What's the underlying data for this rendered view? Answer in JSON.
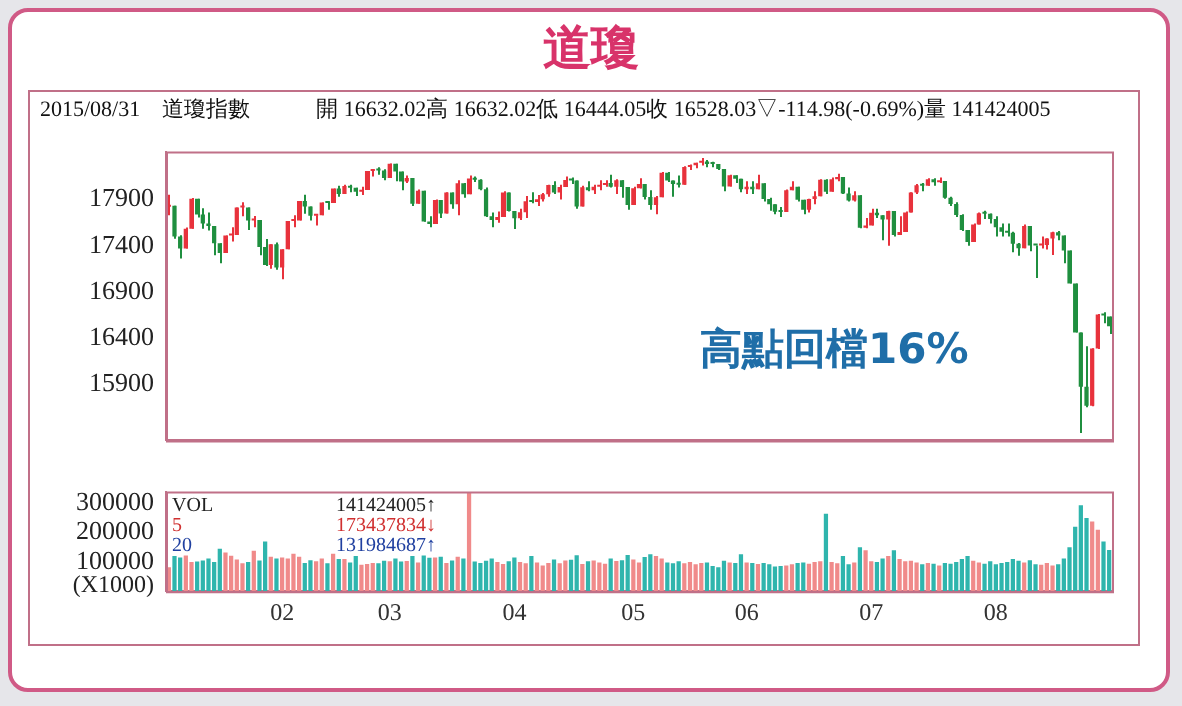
{
  "chart_data": [
    {
      "type": "candlestick",
      "title": "道瓊",
      "subtitle": "2015/08/31　道瓊指數　　　開 16632.02高 16632.02低 16444.05收 16528.03▽-114.98(-0.69%)量 141424005",
      "categories": [
        null,
        null,
        null,
        null,
        null,
        null,
        null,
        null,
        null,
        null,
        null,
        null,
        null,
        null,
        null,
        null,
        null,
        null,
        null,
        null,
        "02",
        null,
        null,
        null,
        null,
        null,
        null,
        null,
        null,
        null,
        null,
        null,
        null,
        null,
        null,
        null,
        null,
        null,
        null,
        "03",
        null,
        null,
        null,
        null,
        null,
        null,
        null,
        null,
        null,
        null,
        null,
        null,
        null,
        null,
        null,
        null,
        null,
        null,
        null,
        null,
        null,
        "04",
        null,
        null,
        null,
        null,
        null,
        null,
        null,
        null,
        null,
        null,
        null,
        null,
        null,
        null,
        null,
        null,
        null,
        null,
        null,
        null,
        "05",
        null,
        null,
        null,
        null,
        null,
        null,
        null,
        null,
        null,
        null,
        null,
        null,
        null,
        null,
        null,
        null,
        null,
        null,
        null,
        "06",
        null,
        null,
        null,
        null,
        null,
        null,
        null,
        null,
        null,
        null,
        null,
        null,
        null,
        null,
        null,
        null,
        null,
        null,
        null,
        null,
        null,
        "07",
        null,
        null,
        null,
        null,
        null,
        null,
        null,
        null,
        null,
        null,
        null,
        null,
        null,
        null,
        null,
        null,
        null,
        null,
        null,
        null,
        null,
        "08",
        null,
        null,
        null,
        null,
        null,
        null,
        null,
        null,
        null,
        null,
        null,
        null,
        null,
        null,
        null,
        null,
        null,
        null,
        null,
        null
      ],
      "ohlc": [
        [
          17823,
          17951,
          17731,
          17833
        ],
        [
          17833,
          17833,
          17476,
          17501
        ],
        [
          17501,
          17514,
          17262,
          17371
        ],
        [
          17371,
          17597,
          17371,
          17584
        ],
        [
          17584,
          17916,
          17584,
          17908
        ],
        [
          17908,
          17908,
          17705,
          17737
        ],
        [
          17737,
          17806,
          17585,
          17640
        ],
        [
          17640,
          17760,
          17566,
          17613
        ],
        [
          17613,
          17613,
          17298,
          17427
        ],
        [
          17427,
          17428,
          17210,
          17320
        ],
        [
          17320,
          17511,
          17320,
          17511
        ],
        [
          17511,
          17600,
          17446,
          17516
        ],
        [
          17516,
          17814,
          17516,
          17814
        ],
        [
          17813,
          17870,
          17720,
          17813
        ],
        [
          17813,
          17813,
          17571,
          17673
        ],
        [
          17673,
          17721,
          17600,
          17679
        ],
        [
          17679,
          17679,
          17297,
          17387
        ],
        [
          17387,
          17474,
          17180,
          17191
        ],
        [
          17191,
          17416,
          17150,
          17416
        ],
        [
          17416,
          17436,
          17140,
          17165
        ],
        [
          17165,
          17362,
          17037,
          17362
        ],
        [
          17362,
          17667,
          17362,
          17667
        ],
        [
          17667,
          17730,
          17600,
          17673
        ],
        [
          17673,
          17885,
          17673,
          17885
        ],
        [
          17885,
          17951,
          17746,
          17825
        ],
        [
          17825,
          17825,
          17673,
          17725
        ],
        [
          17725,
          17729,
          17620,
          17729
        ],
        [
          17729,
          17868,
          17729,
          17868
        ],
        [
          17868,
          17881,
          17790,
          17862
        ],
        [
          17862,
          18019,
          17862,
          18019
        ],
        [
          18019,
          18050,
          17930,
          17960
        ],
        [
          17960,
          18060,
          17960,
          18047
        ],
        [
          18047,
          18060,
          17980,
          18029
        ],
        [
          18029,
          18029,
          17940,
          17986
        ],
        [
          17986,
          18040,
          17950,
          18004
        ],
        [
          18004,
          18210,
          18004,
          18210
        ],
        [
          18210,
          18230,
          18150,
          18224
        ],
        [
          18224,
          18250,
          18170,
          18215
        ],
        [
          18215,
          18230,
          18110,
          18133
        ],
        [
          18133,
          18290,
          18133,
          18288
        ],
        [
          18288,
          18288,
          18100,
          18203
        ],
        [
          18203,
          18203,
          18000,
          18097
        ],
        [
          18097,
          18160,
          18080,
          18135
        ],
        [
          18135,
          18135,
          17830,
          17856
        ],
        [
          17856,
          18010,
          17856,
          17995
        ],
        [
          17995,
          17995,
          17660,
          17662
        ],
        [
          17662,
          17720,
          17600,
          17635
        ],
        [
          17635,
          17900,
          17635,
          17895
        ],
        [
          17895,
          17895,
          17700,
          17749
        ],
        [
          17749,
          17980,
          17749,
          17977
        ],
        [
          17977,
          17977,
          17800,
          17849
        ],
        [
          17849,
          18110,
          17730,
          18076
        ],
        [
          18076,
          18080,
          17920,
          17959
        ],
        [
          17959,
          18160,
          17959,
          18128
        ],
        [
          18128,
          18150,
          18090,
          18116
        ],
        [
          18116,
          18120,
          18000,
          18011
        ],
        [
          18011,
          18030,
          17710,
          17718
        ],
        [
          17718,
          17760,
          17600,
          17678
        ],
        [
          17678,
          17770,
          17650,
          17712
        ],
        [
          17712,
          17990,
          17712,
          17976
        ],
        [
          17976,
          17976,
          17770,
          17776
        ],
        [
          17776,
          17776,
          17580,
          17698
        ],
        [
          17698,
          17800,
          17680,
          17763
        ],
        [
          17763,
          17940,
          17700,
          17881
        ],
        [
          17881,
          17980,
          17860,
          17875
        ],
        [
          17875,
          17950,
          17830,
          17903
        ],
        [
          17903,
          17970,
          17880,
          17958
        ],
        [
          17958,
          18060,
          17930,
          18057
        ],
        [
          18057,
          18100,
          17960,
          17977
        ],
        [
          17977,
          18060,
          17900,
          18036
        ],
        [
          18036,
          18150,
          18036,
          18113
        ],
        [
          18113,
          18140,
          18070,
          18106
        ],
        [
          18106,
          18106,
          17800,
          17826
        ],
        [
          17826,
          18050,
          17826,
          18034
        ],
        [
          18034,
          18100,
          17990,
          18000
        ],
        [
          18000,
          18060,
          17960,
          18039
        ],
        [
          18039,
          18110,
          18000,
          18059
        ],
        [
          18059,
          18110,
          18040,
          18080
        ],
        [
          18080,
          18170,
          18030,
          18038
        ],
        [
          18038,
          18120,
          17960,
          18110
        ],
        [
          18110,
          18110,
          17920,
          18036
        ],
        [
          18036,
          18036,
          17790,
          17841
        ],
        [
          17841,
          18040,
          17841,
          18024
        ],
        [
          18024,
          18130,
          18020,
          18070
        ],
        [
          18070,
          18070,
          17900,
          17929
        ],
        [
          17929,
          18000,
          17790,
          17842
        ],
        [
          17842,
          17940,
          17740,
          17925
        ],
        [
          17925,
          18200,
          17925,
          18191
        ],
        [
          18191,
          18200,
          18090,
          18106
        ],
        [
          18106,
          18106,
          17930,
          18068
        ],
        [
          18068,
          18160,
          18030,
          18060
        ],
        [
          18060,
          18260,
          18060,
          18252
        ],
        [
          18252,
          18280,
          18220,
          18273
        ],
        [
          18273,
          18300,
          18240,
          18299
        ],
        [
          18299,
          18350,
          18270,
          18312
        ],
        [
          18312,
          18330,
          18250,
          18286
        ],
        [
          18286,
          18310,
          18250,
          18285
        ],
        [
          18285,
          18285,
          18220,
          18232
        ],
        [
          18232,
          18232,
          17990,
          18042
        ],
        [
          18042,
          18170,
          18042,
          18163
        ],
        [
          18163,
          18163,
          18080,
          18126
        ],
        [
          18126,
          18126,
          17980,
          18011
        ],
        [
          18011,
          18100,
          17960,
          18040
        ],
        [
          18040,
          18100,
          17960,
          18011
        ],
        [
          18011,
          18170,
          18011,
          18077
        ],
        [
          18077,
          18077,
          17880,
          17906
        ],
        [
          17906,
          17920,
          17780,
          17849
        ],
        [
          17849,
          17849,
          17740,
          17767
        ],
        [
          17767,
          17820,
          17710,
          17765
        ],
        [
          17765,
          18010,
          17765,
          18001
        ],
        [
          18001,
          18100,
          18001,
          18040
        ],
        [
          18040,
          18040,
          17880,
          17899
        ],
        [
          17899,
          17899,
          17740,
          17791
        ],
        [
          17791,
          17910,
          17760,
          17905
        ],
        [
          17905,
          17990,
          17850,
          17935
        ],
        [
          17935,
          18120,
          17935,
          18116
        ],
        [
          18116,
          18120,
          17960,
          17985
        ],
        [
          17985,
          18140,
          17985,
          18120
        ],
        [
          18120,
          18180,
          18100,
          18145
        ],
        [
          18145,
          18145,
          17960,
          17967
        ],
        [
          17967,
          18030,
          17880,
          17891
        ],
        [
          17891,
          17990,
          17880,
          17947
        ],
        [
          17947,
          17947,
          17590,
          17596
        ],
        [
          17596,
          17700,
          17590,
          17620
        ],
        [
          17620,
          17800,
          17620,
          17758
        ],
        [
          17758,
          17800,
          17700,
          17731
        ],
        [
          17731,
          17731,
          17460,
          17684
        ],
        [
          17684,
          17780,
          17400,
          17776
        ],
        [
          17776,
          17776,
          17500,
          17515
        ],
        [
          17515,
          17720,
          17515,
          17548
        ],
        [
          17548,
          17770,
          17548,
          17760
        ],
        [
          17760,
          17980,
          17760,
          17978
        ],
        [
          17978,
          18070,
          17960,
          18054
        ],
        [
          18054,
          18080,
          17990,
          18051
        ],
        [
          18051,
          18130,
          18051,
          18121
        ],
        [
          18121,
          18130,
          18050,
          18087
        ],
        [
          18087,
          18140,
          18080,
          18101
        ],
        [
          18101,
          18101,
          17910,
          17919
        ],
        [
          17919,
          17930,
          17830,
          17851
        ],
        [
          17851,
          17870,
          17710,
          17732
        ],
        [
          17732,
          17740,
          17560,
          17569
        ],
        [
          17569,
          17570,
          17400,
          17441
        ],
        [
          17441,
          17640,
          17441,
          17631
        ],
        [
          17631,
          17760,
          17630,
          17751
        ],
        [
          17751,
          17780,
          17690,
          17746
        ],
        [
          17746,
          17750,
          17640,
          17690
        ],
        [
          17690,
          17720,
          17500,
          17599
        ],
        [
          17599,
          17640,
          17500,
          17550
        ],
        [
          17550,
          17640,
          17500,
          17541
        ],
        [
          17541,
          17550,
          17330,
          17420
        ],
        [
          17420,
          17430,
          17290,
          17373
        ],
        [
          17373,
          17630,
          17373,
          17615
        ],
        [
          17615,
          17615,
          17340,
          17403
        ],
        [
          17403,
          17403,
          17050,
          17402
        ],
        [
          17402,
          17500,
          17370,
          17409
        ],
        [
          17409,
          17480,
          17360,
          17478
        ],
        [
          17478,
          17550,
          17300,
          17546
        ],
        [
          17546,
          17560,
          17460,
          17512
        ],
        [
          17512,
          17512,
          17210,
          17349
        ],
        [
          17349,
          17349,
          16990,
          16991
        ],
        [
          16991,
          16991,
          16460,
          16460
        ],
        [
          16460,
          16460,
          15370,
          15871
        ],
        [
          15872,
          16310,
          15650,
          15666
        ],
        [
          15666,
          16290,
          15660,
          16285
        ],
        [
          16285,
          16660,
          16280,
          16655
        ],
        [
          16655,
          16680,
          16560,
          16643
        ],
        [
          16632.02,
          16632.02,
          16444.05,
          16528.03
        ]
      ],
      "colors": [
        "#e8323c",
        "#1f8f3f",
        "#1f8f3f",
        "#e8323c",
        "#e8323c",
        "#1f8f3f",
        "#1f8f3f",
        "#1f8f3f",
        "#1f8f3f",
        "#1f8f3f",
        "#e8323c",
        "#e8323c",
        "#e8323c",
        "#e8323c",
        "#1f8f3f",
        "#e8323c",
        "#1f8f3f",
        "#1f8f3f",
        "#e8323c",
        "#1f8f3f",
        "#e8323c",
        "#e8323c",
        "#e8323c",
        "#e8323c",
        "#1f8f3f",
        "#1f8f3f",
        "#e8323c",
        "#e8323c",
        "#1f8f3f",
        "#e8323c",
        "#1f8f3f",
        "#e8323c",
        "#1f8f3f",
        "#1f8f3f",
        "#e8323c",
        "#e8323c",
        "#e8323c",
        "#1f8f3f",
        "#1f8f3f",
        "#e8323c",
        "#1f8f3f",
        "#1f8f3f",
        "#e8323c",
        "#1f8f3f",
        "#e8323c",
        "#1f8f3f",
        "#1f8f3f",
        "#e8323c",
        "#1f8f3f",
        "#e8323c",
        "#1f8f3f",
        "#e8323c",
        "#1f8f3f",
        "#e8323c",
        "#1f8f3f",
        "#1f8f3f",
        "#1f8f3f",
        "#1f8f3f",
        "#e8323c",
        "#e8323c",
        "#1f8f3f",
        "#1f8f3f",
        "#e8323c",
        "#e8323c",
        "#1f8f3f",
        "#e8323c",
        "#e8323c",
        "#e8323c",
        "#1f8f3f",
        "#e8323c",
        "#e8323c",
        "#1f8f3f",
        "#1f8f3f",
        "#e8323c",
        "#1f8f3f",
        "#e8323c",
        "#e8323c",
        "#e8323c",
        "#1f8f3f",
        "#e8323c",
        "#1f8f3f",
        "#1f8f3f",
        "#e8323c",
        "#e8323c",
        "#1f8f3f",
        "#1f8f3f",
        "#e8323c",
        "#e8323c",
        "#1f8f3f",
        "#1f8f3f",
        "#1f8f3f",
        "#e8323c",
        "#e8323c",
        "#e8323c",
        "#e8323c",
        "#1f8f3f",
        "#1f8f3f",
        "#1f8f3f",
        "#1f8f3f",
        "#e8323c",
        "#1f8f3f",
        "#1f8f3f",
        "#e8323c",
        "#1f8f3f",
        "#e8323c",
        "#1f8f3f",
        "#1f8f3f",
        "#1f8f3f",
        "#1f8f3f",
        "#e8323c",
        "#e8323c",
        "#1f8f3f",
        "#1f8f3f",
        "#e8323c",
        "#e8323c",
        "#e8323c",
        "#1f8f3f",
        "#e8323c",
        "#e8323c",
        "#1f8f3f",
        "#1f8f3f",
        "#e8323c",
        "#1f8f3f",
        "#e8323c",
        "#e8323c",
        "#1f8f3f",
        "#1f8f3f",
        "#e8323c",
        "#1f8f3f",
        "#e8323c",
        "#e8323c",
        "#e8323c",
        "#e8323c",
        "#1f8f3f",
        "#e8323c",
        "#1f8f3f",
        "#e8323c",
        "#1f8f3f",
        "#1f8f3f",
        "#1f8f3f",
        "#1f8f3f",
        "#1f8f3f",
        "#e8323c",
        "#e8323c",
        "#1f8f3f",
        "#1f8f3f",
        "#1f8f3f",
        "#1f8f3f",
        "#1f8f3f",
        "#1f8f3f",
        "#1f8f3f",
        "#e8323c",
        "#1f8f3f",
        "#1f8f3f",
        "#e8323c",
        "#e8323c",
        "#e8323c",
        "#1f8f3f",
        "#1f8f3f",
        "#1f8f3f",
        "#1f8f3f",
        "#1f8f3f",
        "#1f8f3f",
        "#e8323c",
        "#e8323c",
        "#1f8f3f",
        "#1f8f3f"
      ],
      "ylim": [
        15290,
        18420
      ],
      "yticks": [
        15900,
        16400,
        16900,
        17400,
        17900
      ],
      "tick_labels": "y",
      "annotations": [
        "高點回檔16%"
      ]
    },
    {
      "type": "bar",
      "ylabel": "(X1000)",
      "categories": [
        null,
        null,
        null,
        null,
        null,
        null,
        null,
        null,
        null,
        null,
        null,
        null,
        null,
        null,
        null,
        null,
        null,
        null,
        null,
        null,
        "02",
        null,
        null,
        null,
        null,
        null,
        null,
        null,
        null,
        null,
        null,
        null,
        null,
        null,
        null,
        null,
        null,
        null,
        null,
        "03",
        null,
        null,
        null,
        null,
        null,
        null,
        null,
        null,
        null,
        null,
        null,
        null,
        null,
        null,
        null,
        null,
        null,
        null,
        null,
        null,
        null,
        "04",
        null,
        null,
        null,
        null,
        null,
        null,
        null,
        null,
        null,
        null,
        null,
        null,
        null,
        null,
        null,
        null,
        null,
        null,
        null,
        null,
        "05",
        null,
        null,
        null,
        null,
        null,
        null,
        null,
        null,
        null,
        null,
        null,
        null,
        null,
        null,
        null,
        null,
        null,
        null,
        null,
        "06",
        null,
        null,
        null,
        null,
        null,
        null,
        null,
        null,
        null,
        null,
        null,
        null,
        null,
        null,
        null,
        null,
        null,
        null,
        null,
        null,
        null,
        "07",
        null,
        null,
        null,
        null,
        null,
        null,
        null,
        null,
        null,
        null,
        null,
        null,
        null,
        null,
        null,
        null,
        null,
        null,
        null,
        null,
        null,
        "08",
        null,
        null,
        null,
        null,
        null,
        null,
        null,
        null,
        null,
        null,
        null,
        null,
        null,
        null,
        null,
        null,
        null,
        null,
        null,
        null
      ],
      "values": [
        82000,
        120000,
        115000,
        122000,
        100000,
        101000,
        105000,
        112000,
        100000,
        145000,
        132000,
        121000,
        108000,
        95000,
        100000,
        138000,
        105000,
        170000,
        118000,
        112000,
        115000,
        112000,
        128000,
        118000,
        96000,
        106000,
        102000,
        112000,
        95000,
        128000,
        110000,
        110000,
        98000,
        120000,
        90000,
        93000,
        96000,
        95000,
        104000,
        102000,
        112000,
        101000,
        103000,
        120000,
        98000,
        122000,
        114000,
        115000,
        118000,
        96000,
        105000,
        118000,
        112000,
        335000,
        101000,
        96000,
        104000,
        112000,
        100000,
        93000,
        102000,
        115000,
        100000,
        95000,
        120000,
        98000,
        88000,
        96000,
        108000,
        95000,
        105000,
        107000,
        123000,
        93000,
        102000,
        105000,
        98000,
        94000,
        112000,
        103000,
        106000,
        124000,
        108000,
        98000,
        117000,
        126000,
        120000,
        112000,
        98000,
        95000,
        102000,
        95000,
        100000,
        92000,
        96000,
        98000,
        86000,
        82000,
        104000,
        98000,
        96000,
        126000,
        98000,
        96000,
        93000,
        96000,
        92000,
        84000,
        86000,
        88000,
        92000,
        96000,
        98000,
        94000,
        100000,
        102000,
        264000,
        100000,
        95000,
        120000,
        92000,
        98000,
        150000,
        140000,
        102000,
        100000,
        112000,
        120000,
        140000,
        110000,
        102000,
        104000,
        98000,
        92000,
        96000,
        94000,
        88000,
        96000,
        94000,
        100000,
        110000,
        120000,
        104000,
        98000,
        94000,
        102000,
        92000,
        96000,
        100000,
        110000,
        104000,
        98000,
        106000,
        92000,
        90000,
        96000,
        88000,
        92000,
        112000,
        150000,
        220000,
        293000,
        250000,
        238000,
        210000,
        170000,
        141000
      ],
      "colors": [
        "#f08a8a",
        "#2fb5ad",
        "#2fb5ad",
        "#f08a8a",
        "#f08a8a",
        "#2fb5ad",
        "#2fb5ad",
        "#2fb5ad",
        "#2fb5ad",
        "#2fb5ad",
        "#f08a8a",
        "#f08a8a",
        "#f08a8a",
        "#f08a8a",
        "#2fb5ad",
        "#f08a8a",
        "#2fb5ad",
        "#2fb5ad",
        "#f08a8a",
        "#2fb5ad",
        "#f08a8a",
        "#f08a8a",
        "#f08a8a",
        "#f08a8a",
        "#2fb5ad",
        "#2fb5ad",
        "#f08a8a",
        "#f08a8a",
        "#2fb5ad",
        "#f08a8a",
        "#2fb5ad",
        "#f08a8a",
        "#2fb5ad",
        "#2fb5ad",
        "#f08a8a",
        "#f08a8a",
        "#f08a8a",
        "#2fb5ad",
        "#2fb5ad",
        "#f08a8a",
        "#2fb5ad",
        "#2fb5ad",
        "#f08a8a",
        "#2fb5ad",
        "#f08a8a",
        "#2fb5ad",
        "#2fb5ad",
        "#f08a8a",
        "#2fb5ad",
        "#f08a8a",
        "#2fb5ad",
        "#f08a8a",
        "#2fb5ad",
        "#f08a8a",
        "#2fb5ad",
        "#2fb5ad",
        "#2fb5ad",
        "#2fb5ad",
        "#f08a8a",
        "#f08a8a",
        "#2fb5ad",
        "#2fb5ad",
        "#f08a8a",
        "#f08a8a",
        "#2fb5ad",
        "#f08a8a",
        "#f08a8a",
        "#f08a8a",
        "#2fb5ad",
        "#f08a8a",
        "#f08a8a",
        "#2fb5ad",
        "#2fb5ad",
        "#f08a8a",
        "#2fb5ad",
        "#f08a8a",
        "#f08a8a",
        "#f08a8a",
        "#2fb5ad",
        "#f08a8a",
        "#2fb5ad",
        "#2fb5ad",
        "#f08a8a",
        "#f08a8a",
        "#2fb5ad",
        "#2fb5ad",
        "#f08a8a",
        "#f08a8a",
        "#2fb5ad",
        "#2fb5ad",
        "#2fb5ad",
        "#f08a8a",
        "#f08a8a",
        "#f08a8a",
        "#f08a8a",
        "#2fb5ad",
        "#2fb5ad",
        "#2fb5ad",
        "#2fb5ad",
        "#f08a8a",
        "#2fb5ad",
        "#2fb5ad",
        "#f08a8a",
        "#2fb5ad",
        "#f08a8a",
        "#2fb5ad",
        "#2fb5ad",
        "#2fb5ad",
        "#2fb5ad",
        "#f08a8a",
        "#f08a8a",
        "#2fb5ad",
        "#2fb5ad",
        "#f08a8a",
        "#f08a8a",
        "#f08a8a",
        "#2fb5ad",
        "#f08a8a",
        "#f08a8a",
        "#2fb5ad",
        "#2fb5ad",
        "#f08a8a",
        "#2fb5ad",
        "#f08a8a",
        "#f08a8a",
        "#2fb5ad",
        "#2fb5ad",
        "#f08a8a",
        "#2fb5ad",
        "#f08a8a",
        "#f08a8a",
        "#f08a8a",
        "#f08a8a",
        "#2fb5ad",
        "#f08a8a",
        "#2fb5ad",
        "#f08a8a",
        "#2fb5ad",
        "#2fb5ad",
        "#2fb5ad",
        "#2fb5ad",
        "#2fb5ad",
        "#f08a8a",
        "#f08a8a",
        "#2fb5ad",
        "#2fb5ad",
        "#2fb5ad",
        "#2fb5ad",
        "#2fb5ad",
        "#2fb5ad",
        "#2fb5ad",
        "#f08a8a",
        "#2fb5ad",
        "#2fb5ad",
        "#f08a8a",
        "#f08a8a",
        "#f08a8a",
        "#2fb5ad",
        "#2fb5ad",
        "#2fb5ad",
        "#2fb5ad",
        "#2fb5ad",
        "#2fb5ad",
        "#f08a8a",
        "#f08a8a",
        "#2fb5ad",
        "#2fb5ad"
      ],
      "ylim": [
        0,
        340000
      ],
      "yticks": [
        100000,
        200000,
        300000
      ],
      "annotations": [
        "VOL 141424005↑",
        "5 173437834↓",
        "20 131984687↑"
      ]
    }
  ]
}
